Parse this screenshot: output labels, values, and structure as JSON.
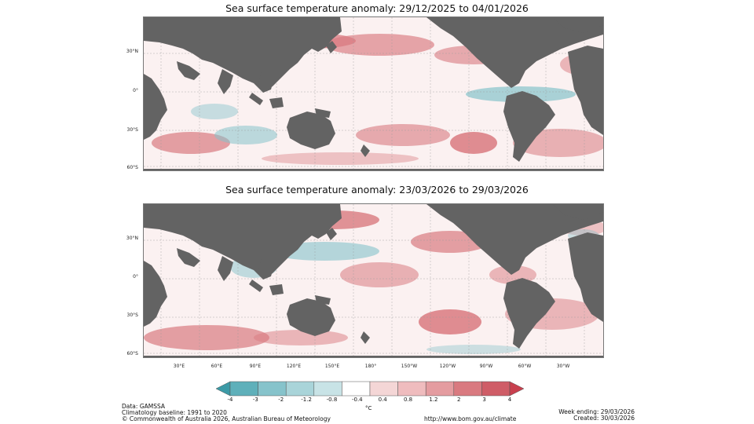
{
  "maps": [
    {
      "title": "Sea surface temperature anomaly: 29/12/2025 to 04/01/2026"
    },
    {
      "title": "Sea surface temperature anomaly: 23/03/2026 to 29/03/2026"
    }
  ],
  "lat_labels": [
    "30°N",
    "0°",
    "30°S",
    "60°S"
  ],
  "lon_labels": [
    "30°E",
    "60°E",
    "90°E",
    "120°E",
    "150°E",
    "180°",
    "150°W",
    "120°W",
    "90°W",
    "60°W",
    "30°W"
  ],
  "colorbar": {
    "ticks": [
      "-4",
      "-3",
      "-2",
      "-1.2",
      "-0.8",
      "-0.4",
      "0.4",
      "0.8",
      "1.2",
      "2",
      "3",
      "4"
    ],
    "unit": "°C",
    "colors": [
      "#3c9aa6",
      "#5fb0ba",
      "#86c3cb",
      "#a9d4d9",
      "#c8e3e6",
      "#ffffff",
      "#f4d6d6",
      "#efbcbe",
      "#e49ca0",
      "#d97a80",
      "#cf5d67",
      "#c8404e"
    ]
  },
  "footer": {
    "data_source": "Data: GAMSSA",
    "baseline": "Climatology baseline: 1991 to 2020",
    "copyright": "© Commonwealth of Australia 2026, Australian Bureau of Meteorology",
    "url": "http://www.bom.gov.au/climate",
    "week_ending": "Week ending: 29/03/2026",
    "created": "Created: 30/03/2026"
  },
  "colors": {
    "land": "#636363",
    "warm": "#d97a80",
    "warm_strong": "#c8404e",
    "cool": "#86c3cb",
    "light_warm": "#f4d6d6"
  }
}
